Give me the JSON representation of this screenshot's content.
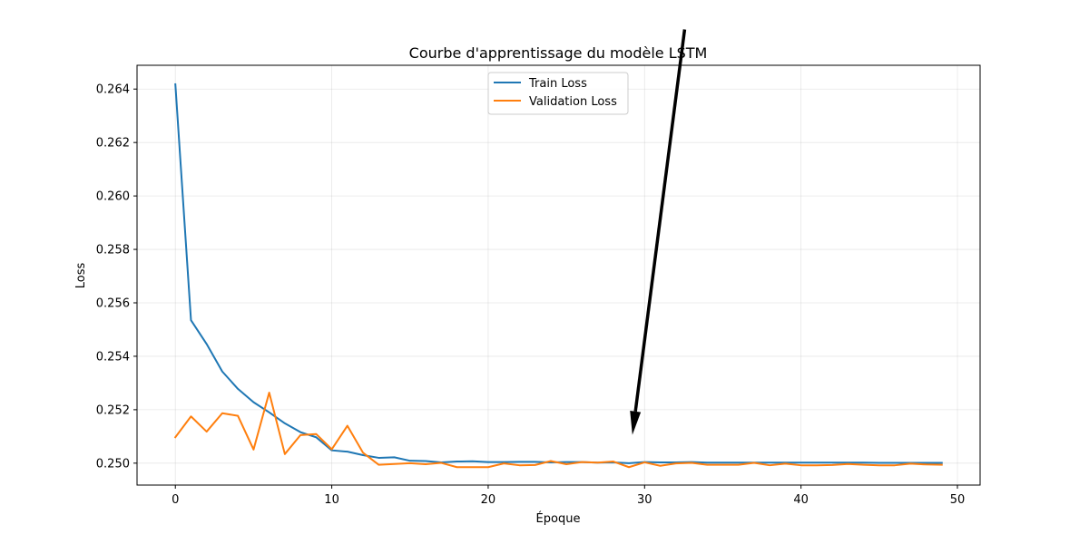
{
  "chart_data": {
    "type": "line",
    "title": "Courbe d'apprentissage du modèle LSTM",
    "xlabel": "Époque",
    "ylabel": "Loss",
    "xlim": [
      -2.45,
      51.45
    ],
    "ylim": [
      0.24918,
      0.26489
    ],
    "xticks": [
      0,
      10,
      20,
      30,
      40,
      50
    ],
    "yticks": [
      0.25,
      0.252,
      0.254,
      0.256,
      0.258,
      0.26,
      0.262,
      0.264
    ],
    "grid": true,
    "legend_position": "top-center",
    "x": [
      0,
      1,
      2,
      3,
      4,
      5,
      6,
      7,
      8,
      9,
      10,
      11,
      12,
      13,
      14,
      15,
      16,
      17,
      18,
      19,
      20,
      21,
      22,
      23,
      24,
      25,
      26,
      27,
      28,
      29,
      30,
      31,
      32,
      33,
      34,
      35,
      36,
      37,
      38,
      39,
      40,
      41,
      42,
      43,
      44,
      45,
      46,
      47,
      48,
      49
    ],
    "series": [
      {
        "name": "Train Loss",
        "color": "#1f77b4",
        "values": [
          0.26418,
          0.25535,
          0.25446,
          0.25343,
          0.25278,
          0.25228,
          0.2519,
          0.25149,
          0.25116,
          0.25097,
          0.25048,
          0.25043,
          0.2503,
          0.2502,
          0.25022,
          0.25009,
          0.25008,
          0.25003,
          0.25006,
          0.25007,
          0.25004,
          0.25004,
          0.25005,
          0.25005,
          0.25003,
          0.25004,
          0.25004,
          0.25002,
          0.25003,
          0.25,
          0.25004,
          0.25003,
          0.25003,
          0.25004,
          0.25002,
          0.25002,
          0.25002,
          0.25002,
          0.25002,
          0.25002,
          0.25002,
          0.25002,
          0.25002,
          0.25002,
          0.25002,
          0.25001,
          0.25001,
          0.25001,
          0.25001,
          0.25001
        ]
      },
      {
        "name": "Validation Loss",
        "color": "#ff7f0e",
        "values": [
          0.25097,
          0.25175,
          0.25118,
          0.25187,
          0.25177,
          0.25051,
          0.25264,
          0.25034,
          0.25105,
          0.25109,
          0.25052,
          0.2514,
          0.25039,
          0.24994,
          0.24997,
          0.25,
          0.24996,
          0.25001,
          0.24985,
          0.24985,
          0.24985,
          0.24999,
          0.24992,
          0.24993,
          0.25008,
          0.24996,
          0.25004,
          0.25002,
          0.25006,
          0.24985,
          0.25003,
          0.2499,
          0.24999,
          0.25001,
          0.24994,
          0.24994,
          0.24994,
          0.25001,
          0.24992,
          0.24998,
          0.24992,
          0.24992,
          0.24993,
          0.24997,
          0.24994,
          0.24992,
          0.24992,
          0.24998,
          0.24995,
          0.24994
        ]
      }
    ],
    "annotation": {
      "type": "arrow",
      "color": "#000000",
      "from": [
        32.56,
        0.26623
      ],
      "to": [
        29.22,
        0.25106
      ]
    }
  }
}
